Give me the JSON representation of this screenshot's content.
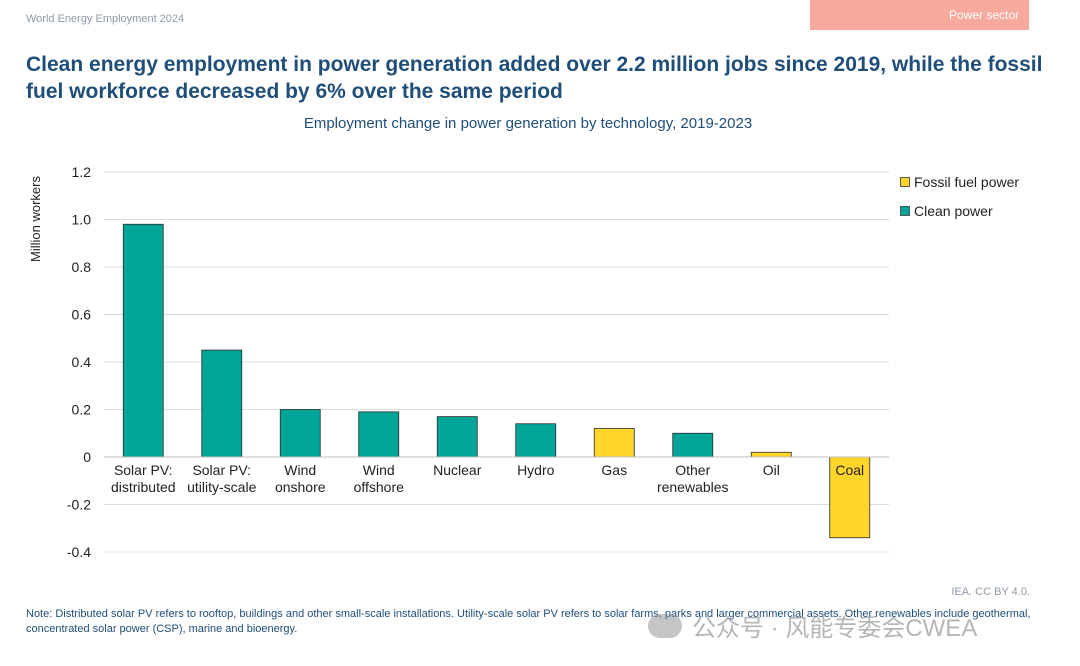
{
  "header": {
    "report_label": "World Energy Employment 2024",
    "section_tab": "Power sector"
  },
  "headline": "Clean energy employment in power generation added over 2.2 million jobs since 2019, while the fossil fuel workforce decreased by 6% over the same period",
  "chart_data": {
    "type": "bar",
    "title": "Employment change in power generation by technology, 2019-2023",
    "ylabel": "Million workers",
    "xlabel": "",
    "ylim": [
      -0.4,
      1.2
    ],
    "yticks": [
      1.2,
      1.0,
      0.8,
      0.6,
      0.4,
      0.2,
      0,
      -0.2,
      -0.4
    ],
    "ytick_labels": [
      "1.2",
      "1.0",
      "0.8",
      "0.6",
      "0.4",
      "0.2",
      "0",
      "-0.2",
      "-0.4"
    ],
    "grid": true,
    "legend_position": "top-right",
    "categories": [
      [
        "Solar PV:",
        "distributed"
      ],
      [
        "Solar PV:",
        "utility-scale"
      ],
      [
        "Wind",
        "onshore"
      ],
      [
        "Wind",
        "offshore"
      ],
      [
        "Nuclear"
      ],
      [
        "Hydro"
      ],
      [
        "Gas"
      ],
      [
        "Other",
        "renewables"
      ],
      [
        "Oil"
      ],
      [
        "Coal"
      ]
    ],
    "values": [
      0.98,
      0.45,
      0.2,
      0.19,
      0.17,
      0.14,
      0.12,
      0.1,
      0.02,
      -0.34
    ],
    "groups": [
      "clean",
      "clean",
      "clean",
      "clean",
      "clean",
      "clean",
      "fossil",
      "clean",
      "fossil",
      "fossil"
    ],
    "series": [
      {
        "key": "fossil",
        "name": "Fossil fuel power",
        "color": "#ffd52b"
      },
      {
        "key": "clean",
        "name": "Clean power",
        "color": "#00a597"
      }
    ]
  },
  "footer": {
    "credit": "IEA. CC BY 4.0.",
    "note": "Note: Distributed solar PV refers to rooftop, buildings and other small-scale installations. Utility-scale solar PV refers to solar farms, parks and larger commercial assets. Other renewables include geothermal, concentrated solar power (CSP), marine and bioenergy.",
    "watermark": "公众号 · 风能专委会CWEA"
  }
}
